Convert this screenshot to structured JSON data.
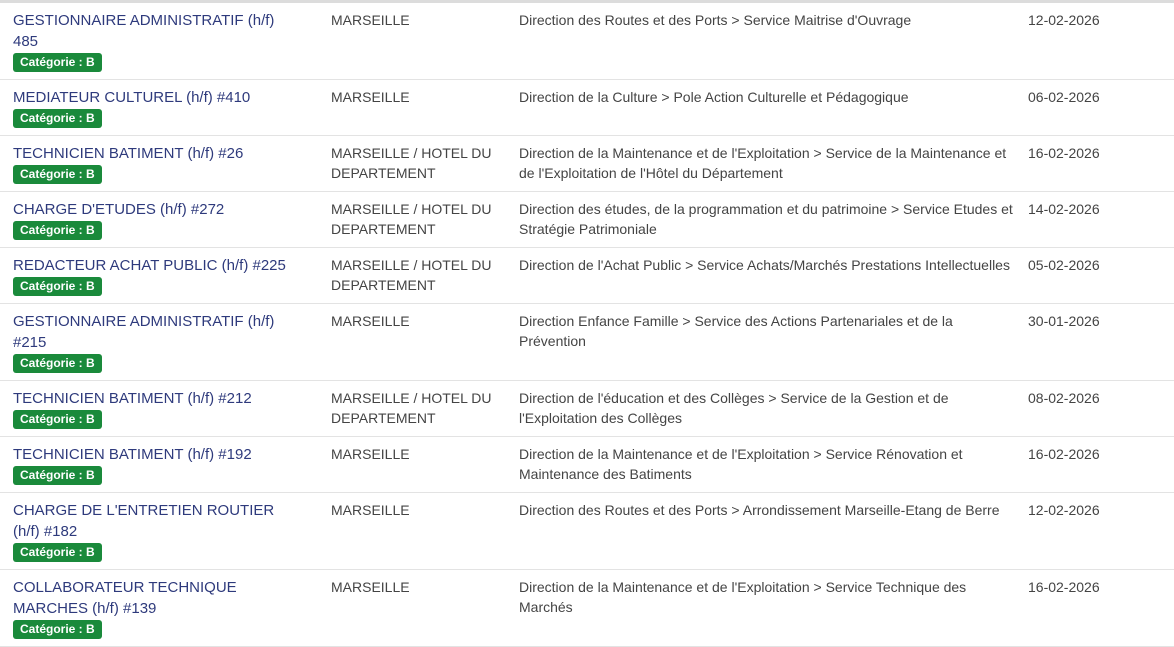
{
  "colors": {
    "title": "#2e3a7c",
    "badge": "#1a8a3b",
    "text": "#444444"
  },
  "offers": [
    {
      "title": "GESTIONNAIRE ADMINISTRATIF (h/f) 485",
      "badge": "Catégorie : B",
      "location": "MARSEILLE",
      "direction": "Direction des Routes et des Ports > Service Maitrise d'Ouvrage",
      "date": "12-02-2026"
    },
    {
      "title": "MEDIATEUR CULTUREL (h/f) #410",
      "badge": "Catégorie : B",
      "location": "MARSEILLE",
      "direction": "Direction de la Culture > Pole Action Culturelle et Pédagogique",
      "date": "06-02-2026"
    },
    {
      "title": "TECHNICIEN BATIMENT (h/f) #26",
      "badge": "Catégorie : B",
      "location": "MARSEILLE / HOTEL DU DEPARTEMENT",
      "direction": "Direction de la Maintenance et de l'Exploitation > Service de la Maintenance et de l'Exploitation de l'Hôtel du Département",
      "date": "16-02-2026"
    },
    {
      "title": "CHARGE D'ETUDES (h/f) #272",
      "badge": "Catégorie : B",
      "location": "MARSEILLE / HOTEL DU DEPARTEMENT",
      "direction": "Direction des études, de la programmation et du patrimoine > Service Etudes et Stratégie Patrimoniale",
      "date": "14-02-2026"
    },
    {
      "title": "REDACTEUR ACHAT PUBLIC (h/f) #225",
      "badge": "Catégorie : B",
      "location": "MARSEILLE / HOTEL DU DEPARTEMENT",
      "direction": "Direction de l'Achat Public > Service Achats/Marchés Prestations Intellectuelles",
      "date": "05-02-2026"
    },
    {
      "title": "GESTIONNAIRE ADMINISTRATIF (h/f) #215",
      "badge": "Catégorie : B",
      "location": "MARSEILLE",
      "direction": "Direction Enfance Famille > Service des Actions Partenariales et de la Prévention",
      "date": "30-01-2026"
    },
    {
      "title": "TECHNICIEN BATIMENT (h/f) #212",
      "badge": "Catégorie : B",
      "location": "MARSEILLE / HOTEL DU DEPARTEMENT",
      "direction": "Direction de l'éducation et des Collèges > Service de la Gestion et de l'Exploitation des Collèges",
      "date": "08-02-2026"
    },
    {
      "title": "TECHNICIEN BATIMENT (h/f) #192",
      "badge": "Catégorie : B",
      "location": "MARSEILLE",
      "direction": "Direction de la Maintenance et de l'Exploitation > Service Rénovation et Maintenance des Batiments",
      "date": "16-02-2026"
    },
    {
      "title": "CHARGE DE L'ENTRETIEN ROUTIER (h/f) #182",
      "badge": "Catégorie : B",
      "location": "MARSEILLE",
      "direction": "Direction des Routes et des Ports > Arrondissement Marseille-Etang de Berre",
      "date": "12-02-2026"
    },
    {
      "title": "COLLABORATEUR TECHNIQUE MARCHES (h/f) #139",
      "badge": "Catégorie : B",
      "location": "MARSEILLE",
      "direction": "Direction de la Maintenance et de l'Exploitation > Service Technique des Marchés",
      "date": "16-02-2026"
    }
  ]
}
